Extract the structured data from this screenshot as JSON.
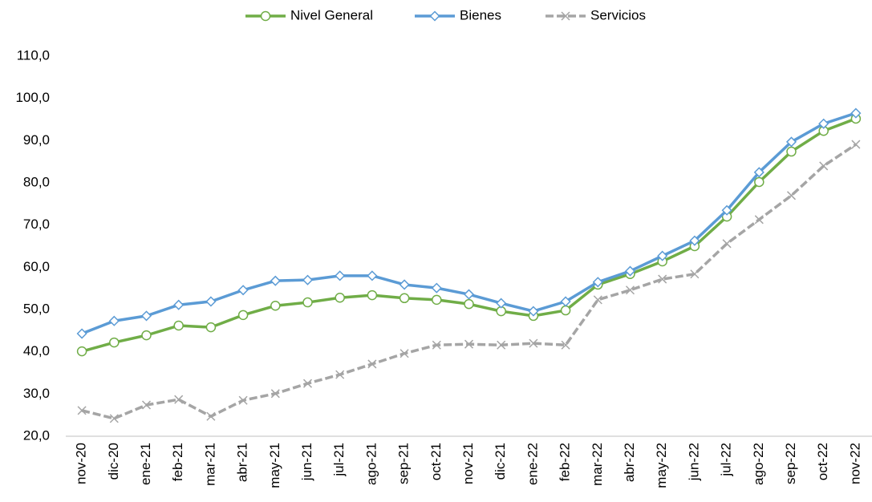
{
  "chart_data": {
    "type": "line",
    "categories": [
      "nov-20",
      "dic-20",
      "ene-21",
      "feb-21",
      "mar-21",
      "abr-21",
      "may-21",
      "jun-21",
      "jul-21",
      "ago-21",
      "sep-21",
      "oct-21",
      "nov-21",
      "dic-21",
      "ene-22",
      "feb-22",
      "mar-22",
      "abr-22",
      "may-22",
      "jun-22",
      "jul-22",
      "ago-22",
      "sep-22",
      "oct-22",
      "nov-22"
    ],
    "series": [
      {
        "name": "Nivel General",
        "color": "#70ad47",
        "marker": "circle",
        "values": [
          40.1,
          42.2,
          43.9,
          46.2,
          45.8,
          48.7,
          50.9,
          51.7,
          52.8,
          53.4,
          52.7,
          52.3,
          51.3,
          49.6,
          48.5,
          49.8,
          55.9,
          58.4,
          61.4,
          65.0,
          72.0,
          80.2,
          87.4,
          92.3,
          95.2
        ]
      },
      {
        "name": "Bienes",
        "color": "#5b9bd5",
        "marker": "diamond",
        "values": [
          44.3,
          47.3,
          48.5,
          51.1,
          51.9,
          54.6,
          56.8,
          57.0,
          58.0,
          58.0,
          55.9,
          55.1,
          53.6,
          51.5,
          49.6,
          51.9,
          56.5,
          59.1,
          62.7,
          66.3,
          73.5,
          82.5,
          89.7,
          94.0,
          96.5
        ]
      },
      {
        "name": "Servicios",
        "color": "#a5a5a5",
        "marker": "x",
        "values": [
          26.1,
          24.2,
          27.4,
          28.7,
          24.7,
          28.5,
          30.1,
          32.5,
          34.6,
          37.1,
          39.6,
          41.6,
          41.8,
          41.6,
          42.0,
          41.6,
          52.3,
          54.6,
          57.2,
          58.4,
          65.6,
          71.3,
          77.0,
          84.0,
          89.1
        ]
      }
    ],
    "ylim": [
      20,
      110
    ],
    "yticks": [
      {
        "value": 20,
        "label": "20,0"
      },
      {
        "value": 30,
        "label": "30,0"
      },
      {
        "value": 40,
        "label": "40,0"
      },
      {
        "value": 50,
        "label": "50,0"
      },
      {
        "value": 60,
        "label": "60,0"
      },
      {
        "value": 70,
        "label": "70,0"
      },
      {
        "value": 80,
        "label": "80,0"
      },
      {
        "value": 90,
        "label": "90,0"
      },
      {
        "value": 100,
        "label": "100,0"
      },
      {
        "value": 110,
        "label": "110,0"
      }
    ],
    "grid": false,
    "legend": "top"
  }
}
